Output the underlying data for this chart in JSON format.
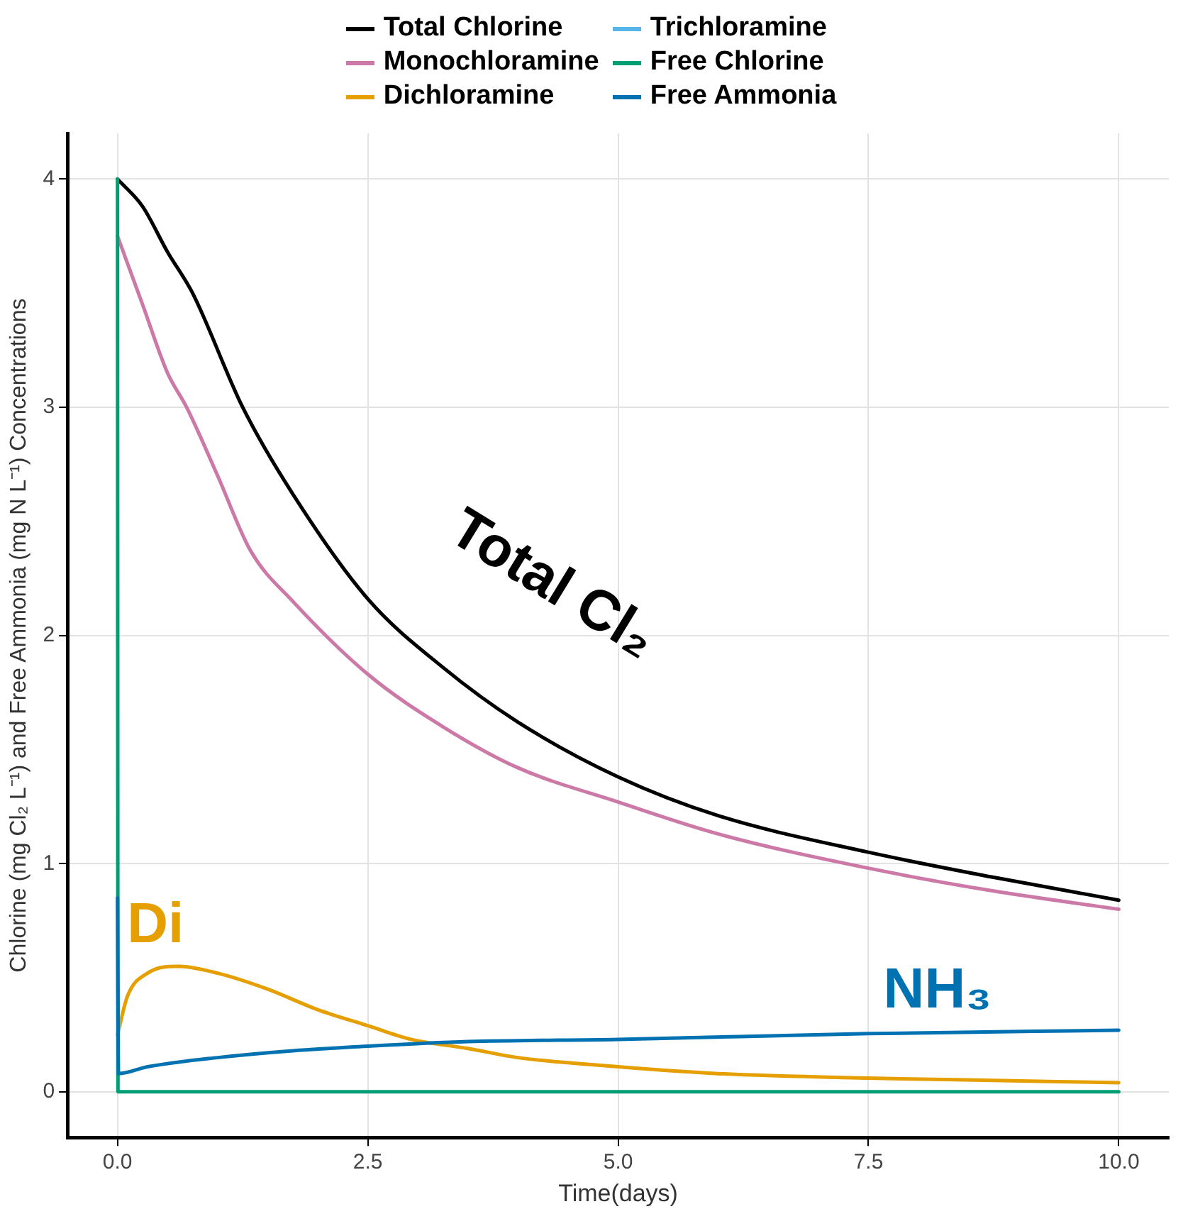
{
  "chart_data": {
    "type": "line",
    "xlabel": "Time(days)",
    "ylabel": "Chlorine (mg Cl₂ L⁻¹) and Free Ammonia (mg N L⁻¹) Concentrations",
    "xlim": [
      -0.5,
      10.5
    ],
    "ylim": [
      -0.2,
      4.2
    ],
    "xticks": [
      {
        "value": 0,
        "label": "0.0"
      },
      2.5,
      {
        "value": 5,
        "label": "5.0"
      },
      7.5,
      {
        "value": 10,
        "label": "10.0"
      }
    ],
    "yticks": [
      0,
      1,
      2,
      3,
      4
    ],
    "grid": true,
    "legend": "top",
    "marker": "none",
    "line_style": "solid",
    "series": [
      {
        "name": "Total Chlorine",
        "color": "#000000",
        "x": [
          0,
          0.25,
          0.5,
          0.75,
          1.25,
          1.75,
          2.5,
          3.25,
          4,
          5,
          6,
          7.5,
          8.75,
          10
        ],
        "values": [
          4,
          3.88,
          3.68,
          3.5,
          3.0,
          2.62,
          2.16,
          1.86,
          1.62,
          1.38,
          1.21,
          1.05,
          0.94,
          0.84
        ]
      },
      {
        "name": "Monochloramine",
        "color": "#cc79a7",
        "x": [
          0,
          0.25,
          0.5,
          0.69,
          1,
          1.33,
          1.75,
          2.5,
          3.25,
          4,
          5,
          6,
          7.5,
          8.75,
          10
        ],
        "values": [
          3.75,
          3.45,
          3.15,
          3.0,
          2.7,
          2.37,
          2.15,
          1.83,
          1.6,
          1.42,
          1.27,
          1.13,
          0.98,
          0.88,
          0.8
        ]
      },
      {
        "name": "Dichloramine",
        "color": "#e69f00",
        "x": [
          0,
          0.1,
          0.3,
          0.6,
          1,
          1.5,
          2,
          2.5,
          2.93,
          3.5,
          4,
          5,
          6,
          7.5,
          8.75,
          10
        ],
        "values": [
          0.25,
          0.42,
          0.52,
          0.55,
          0.52,
          0.45,
          0.36,
          0.29,
          0.23,
          0.19,
          0.15,
          0.11,
          0.08,
          0.06,
          0.05,
          0.04
        ]
      },
      {
        "name": "Trichloramine",
        "color": "#56b4e9"
      },
      {
        "name": "Free Chlorine",
        "color": "#009e73",
        "x": [
          0,
          0.005,
          10
        ],
        "values": [
          4,
          0,
          0
        ]
      },
      {
        "name": "Free Ammonia",
        "color": "#0072b2",
        "x": [
          0,
          0.01,
          0.3,
          1,
          1.75,
          2.5,
          3.5,
          5,
          7.5,
          10
        ],
        "values": [
          0.85,
          0.08,
          0.11,
          0.15,
          0.18,
          0.2,
          0.22,
          0.23,
          0.255,
          0.27
        ]
      }
    ],
    "annotations": [
      "Total Cl₂",
      "Di",
      "NH₃"
    ]
  }
}
